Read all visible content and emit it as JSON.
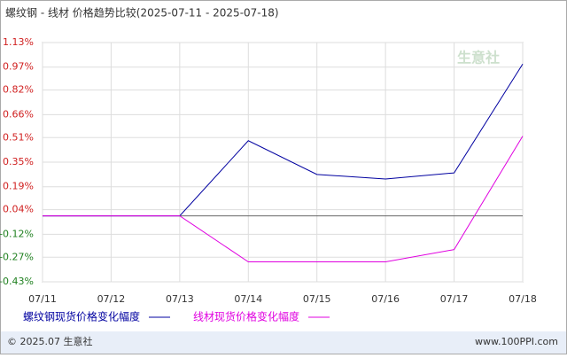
{
  "chart_data": {
    "type": "line",
    "title": "螺纹钢 - 线材 价格趋势比较(2025-07-11 - 2025-07-18)",
    "categories": [
      "07/11",
      "07/12",
      "07/13",
      "07/14",
      "07/15",
      "07/16",
      "07/17",
      "07/18"
    ],
    "series": [
      {
        "name": "螺纹钢现货价格变化幅度",
        "color": "#0000a0",
        "values": [
          0,
          0,
          0,
          0.49,
          0.27,
          0.24,
          0.28,
          0.99
        ]
      },
      {
        "name": "线材现货价格变化幅度",
        "color": "#e000e0",
        "values": [
          0,
          0,
          0,
          -0.3,
          -0.3,
          -0.3,
          -0.22,
          0.52
        ]
      }
    ],
    "ylim": [
      -0.43,
      1.13
    ],
    "yticks": [
      {
        "value": 1.13,
        "label": "1.13%"
      },
      {
        "value": 0.97,
        "label": "0.97%"
      },
      {
        "value": 0.82,
        "label": "0.82%"
      },
      {
        "value": 0.66,
        "label": "0.66%"
      },
      {
        "value": 0.51,
        "label": "0.51%"
      },
      {
        "value": 0.35,
        "label": "0.35%"
      },
      {
        "value": 0.19,
        "label": "0.19%"
      },
      {
        "value": 0.04,
        "label": "0.04%"
      },
      {
        "value": -0.12,
        "label": "-0.12%"
      },
      {
        "value": -0.27,
        "label": "-0.27%"
      },
      {
        "value": -0.43,
        "label": "-0.43%"
      }
    ],
    "grid": true,
    "watermark": "生意社",
    "footer_left": "© 2025.07 生意社",
    "footer_right": "www.100PPI.com"
  }
}
